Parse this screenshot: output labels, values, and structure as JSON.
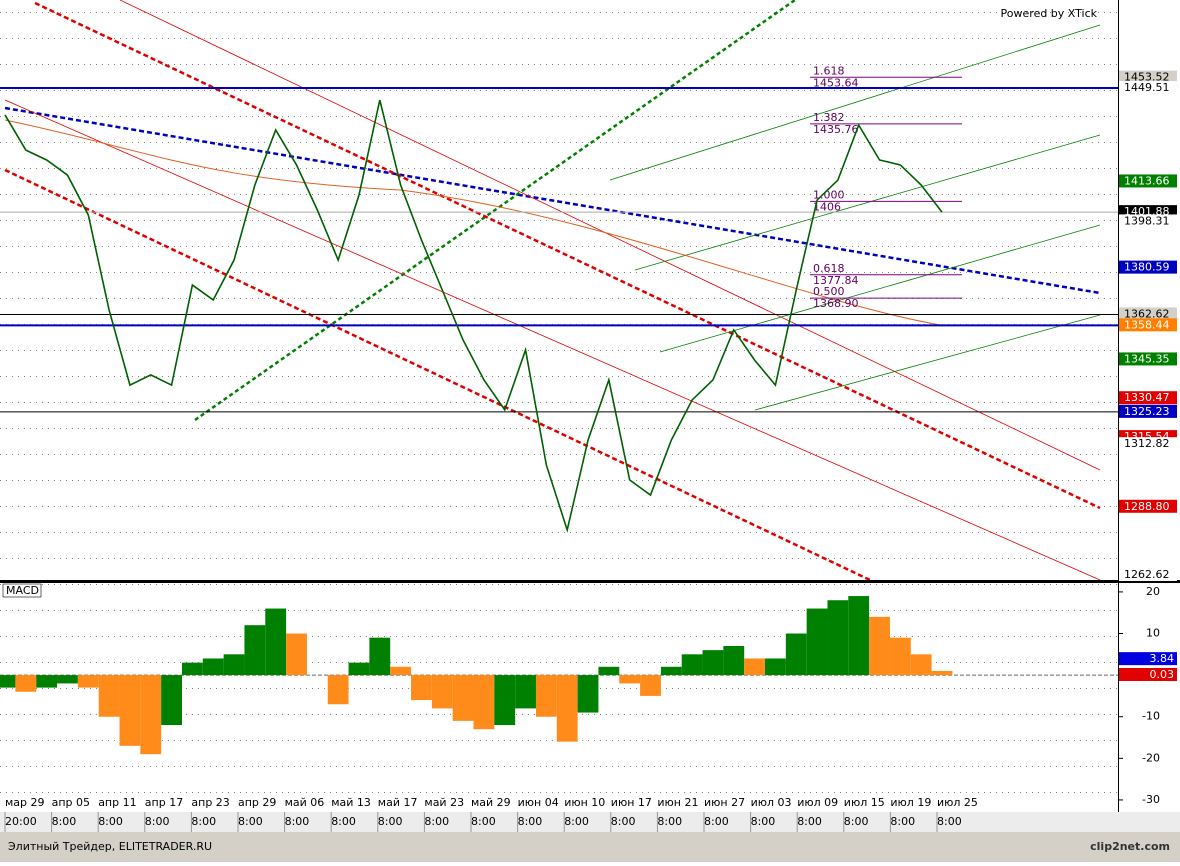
{
  "header": {
    "powered_by": "Powered by XTick"
  },
  "chart_data": [
    {
      "type": "line",
      "color": "#006000",
      "values": [
        1439.2,
        1425.7,
        1421.9,
        1416.1,
        1400.8,
        1364.3,
        1335.5,
        1339.4,
        1335.5,
        1373.9,
        1368.2,
        1383.5,
        1412.3,
        1433.4,
        1420.0,
        1402.7,
        1383.5,
        1408.4,
        1444.9,
        1412.3,
        1391.2,
        1372.0,
        1352.8,
        1337.5,
        1326.0,
        1349.0,
        1304.8,
        1279.9,
        1314.4,
        1337.5,
        1299.1,
        1293.3,
        1314.4,
        1329.8,
        1337.5,
        1356.7,
        1345.1,
        1335.5,
        1372.0,
        1406.5,
        1414.2,
        1435.3,
        1421.9,
        1420.0,
        1412.3,
        1401.9
      ],
      "ylim": [
        1260.7,
        1483.3
      ],
      "levels": [
        {
          "value": 1453.52,
          "bg": "#d4d0c8",
          "fg": "#000000"
        },
        {
          "value": 1449.51,
          "bg": "#ffffff",
          "fg": "#000000",
          "line": "#0000c0"
        },
        {
          "value": 1413.66,
          "bg": "#008000",
          "fg": "#ffffff"
        },
        {
          "value": 1401.88,
          "bg": "#000000",
          "fg": "#ffffff",
          "line": "#aaaaaa"
        },
        {
          "value": 1398.31,
          "bg": "#ffffff",
          "fg": "#000000"
        },
        {
          "value": 1380.59,
          "bg": "#0000c0",
          "fg": "#ffffff"
        },
        {
          "value": 1362.62,
          "bg": "#d4d0c8",
          "fg": "#000000",
          "line": "#000000"
        },
        {
          "value": 1358.44,
          "bg": "#ff8000",
          "fg": "#ffffff",
          "line": "#0000c0"
        },
        {
          "value": 1345.35,
          "bg": "#008000",
          "fg": "#ffffff"
        },
        {
          "value": 1330.47,
          "bg": "#e00000",
          "fg": "#ffffff"
        },
        {
          "value": 1325.23,
          "bg": "#0000c0",
          "fg": "#ffffff",
          "line": "#000000"
        },
        {
          "value": 1315.54,
          "bg": "#e00000",
          "fg": "#ffffff"
        },
        {
          "value": 1312.82,
          "bg": "#ffffff",
          "fg": "#000000"
        },
        {
          "value": 1288.8,
          "label": "1288.80",
          "bg": "#e00000",
          "fg": "#ffffff"
        },
        {
          "value": 1262.62,
          "bg": "#ffffff",
          "fg": "#000000"
        }
      ],
      "fib": [
        {
          "ratio": "1.618",
          "value": 1453.64
        },
        {
          "ratio": "1.382",
          "value": 1435.76
        },
        {
          "ratio": "1.000",
          "value": 1406
        },
        {
          "ratio": "0.618",
          "value": 1377.84
        },
        {
          "ratio": "0.500",
          "value": 1368.9,
          "label": "1368.90"
        }
      ],
      "x_labels": [
        "мар 29",
        "апр 05",
        "апр 11",
        "апр 17",
        "апр 23",
        "апр 29",
        "май 06",
        "май 13",
        "май 17",
        "май 23",
        "май 29",
        "июн 04",
        "июн 10",
        "июн 17",
        "июн 21",
        "июн 27",
        "июл 03",
        "июл 09",
        "июл 15",
        "июл 19",
        "июл 25"
      ],
      "time_labels": [
        "20:00",
        "8:00",
        "8:00",
        "8:00",
        "8:00",
        "8:00",
        "8:00",
        "8:00",
        "8:00",
        "8:00",
        "8:00",
        "8:00",
        "8:00",
        "8:00",
        "8:00",
        "8:00",
        "8:00",
        "8:00",
        "8:00",
        "8:00",
        "8:00"
      ]
    },
    {
      "type": "bar",
      "title": "MACD",
      "up_color": "#008000",
      "down_color": "#ff8c1a",
      "values": [
        -3,
        -4,
        -3,
        -2,
        -3,
        -10,
        -17,
        -19,
        -12,
        3,
        4,
        5,
        12,
        16,
        10,
        0,
        -7,
        3,
        9,
        2,
        -6,
        -8,
        -11,
        -13,
        -12,
        -8,
        -10,
        -16,
        -9,
        2,
        -2,
        -5,
        2,
        5,
        6,
        7,
        4,
        4,
        10,
        16,
        18,
        19,
        14,
        9,
        5,
        1
      ],
      "ylim": [
        -32.9,
        21.9
      ],
      "yticks": [
        20,
        10,
        -10,
        -20,
        -30
      ],
      "markers": [
        {
          "value": 3.84,
          "bg": "#0000e0",
          "fg": "#ffffff"
        },
        {
          "value": 0.03,
          "bg": "#e00000",
          "fg": "#ffffff"
        }
      ]
    }
  ],
  "footer": {
    "left": "Элитный Трейдер, ELITETRADER.RU",
    "logo": "clip2net.com"
  }
}
